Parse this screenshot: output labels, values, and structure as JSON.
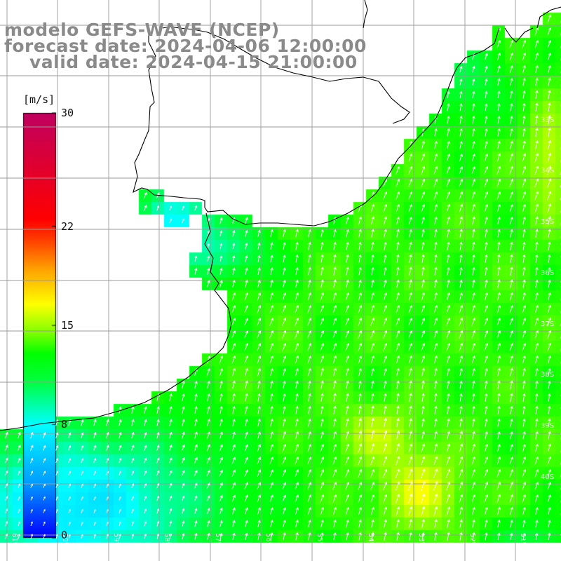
{
  "title": {
    "model_line": "modelo GEFS-WAVE (NCEP)",
    "forecast_line": "forecast date: 2024-04-06 12:00:00",
    "valid_line": "valid date: 2024-04-15 21:00:00"
  },
  "colorbar": {
    "unit": "[m/s]",
    "range": [
      0,
      30
    ],
    "ticks": [
      {
        "label": "30",
        "value": 30
      },
      {
        "label": "22",
        "value": 22
      },
      {
        "label": "15",
        "value": 15
      },
      {
        "label": "8",
        "value": 8
      },
      {
        "label": "0",
        "value": 0
      }
    ],
    "colors": [
      "#0000ff",
      "#00a0ff",
      "#00ffff",
      "#00ff40",
      "#00ff00",
      "#80ff00",
      "#ffff00",
      "#ffa000",
      "#ff4000",
      "#ff0000",
      "#c00060"
    ]
  },
  "map": {
    "variable": "wind speed (m/s) with direction arrows",
    "lon_range": [
      -61.5,
      -50.5
    ],
    "lat_range": [
      -41.0,
      -30.0
    ],
    "lon_labels": [
      "61W",
      "60W",
      "59W",
      "58W",
      "57W",
      "56W",
      "55W",
      "54W",
      "53W",
      "52W",
      "51W"
    ],
    "lat_labels": [
      "33S",
      "34S",
      "35S",
      "36S",
      "37S",
      "38S",
      "39S",
      "40S"
    ],
    "land_color": "#ffffff",
    "coastline_color": "#000000",
    "grid_color": "#9a9a9a",
    "arrow_color": "#ffffff",
    "wind_direction_note": "predominantly from the south-southwest"
  }
}
